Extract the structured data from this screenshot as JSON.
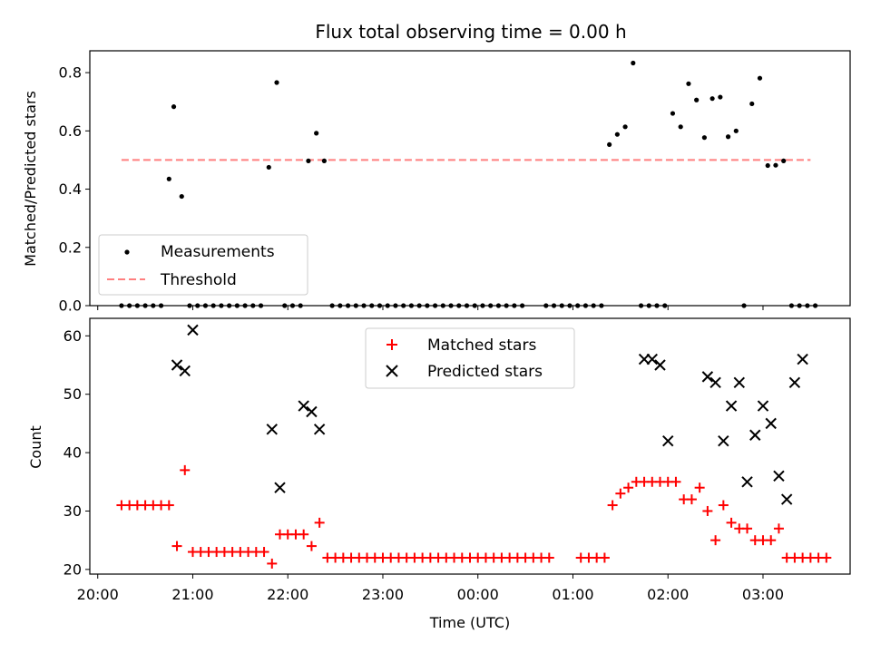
{
  "chart_data": [
    {
      "type": "scatter",
      "title": "Flux total observing time = 0.00 h",
      "xlabel": "",
      "ylabel": "Matched/Predicted stars",
      "xlim": [
        "19:55",
        "03:55"
      ],
      "ylim": [
        0,
        0.875
      ],
      "yticks": [
        "0.0",
        "0.2",
        "0.4",
        "0.6",
        "0.8"
      ],
      "ytick_values": [
        0,
        0.2,
        0.4,
        0.6,
        0.8
      ],
      "threshold": {
        "name": "Threshold",
        "value": 0.5,
        "x_range": [
          "20:15",
          "03:30"
        ],
        "color": "#ff7f7f"
      },
      "legend": {
        "placement": "lower-left",
        "entries": [
          "Measurements",
          "Threshold"
        ]
      },
      "series": [
        {
          "name": "Measurements",
          "color": "#000000",
          "x": [
            "20:15",
            "20:20",
            "20:25",
            "20:30",
            "20:35",
            "20:40",
            "20:45",
            "20:48",
            "20:53",
            "20:58",
            "21:03",
            "21:08",
            "21:13",
            "21:18",
            "21:23",
            "21:28",
            "21:33",
            "21:38",
            "21:43",
            "21:48",
            "21:53",
            "21:58",
            "22:03",
            "22:08",
            "22:13",
            "22:18",
            "22:23",
            "22:28",
            "22:33",
            "22:38",
            "22:43",
            "22:48",
            "22:53",
            "22:58",
            "23:03",
            "23:08",
            "23:13",
            "23:18",
            "23:23",
            "23:28",
            "23:33",
            "23:38",
            "23:43",
            "23:48",
            "23:53",
            "23:58",
            "00:03",
            "00:08",
            "00:13",
            "00:18",
            "00:23",
            "00:28",
            "00:43",
            "00:48",
            "00:53",
            "00:58",
            "01:03",
            "01:08",
            "01:13",
            "01:18",
            "01:23",
            "01:28",
            "01:33",
            "01:38",
            "01:43",
            "01:48",
            "01:53",
            "01:58",
            "02:03",
            "02:08",
            "02:13",
            "02:18",
            "02:23",
            "02:28",
            "02:33",
            "02:38",
            "02:43",
            "02:48",
            "02:53",
            "02:58",
            "03:03",
            "03:08",
            "03:13",
            "03:18",
            "03:23",
            "03:28",
            "03:33"
          ],
          "y": [
            0,
            0,
            0,
            0,
            0,
            0,
            0.435,
            0.683,
            0.375,
            0,
            0,
            0,
            0,
            0,
            0,
            0,
            0,
            0,
            0,
            0.475,
            0.766,
            0,
            0,
            0,
            0.497,
            0.592,
            0.497,
            0,
            0,
            0,
            0,
            0,
            0,
            0,
            0,
            0,
            0,
            0,
            0,
            0,
            0,
            0,
            0,
            0,
            0,
            0,
            0,
            0,
            0,
            0,
            0,
            0,
            0,
            0,
            0,
            0,
            0,
            0,
            0,
            0,
            0.553,
            0.588,
            0.614,
            0.833,
            0,
            0,
            0,
            0,
            0.66,
            0.614,
            0.762,
            0.706,
            0.577,
            0.711,
            0.716,
            0.58,
            0.6,
            0,
            0.693,
            0.781,
            0.481,
            0.482,
            0.497,
            0,
            0,
            0,
            0
          ]
        }
      ]
    },
    {
      "type": "scatter",
      "title": "",
      "xlabel": "Time (UTC)",
      "ylabel": "Count",
      "xlim": [
        "19:55",
        "03:55"
      ],
      "ylim": [
        19.2,
        63
      ],
      "xticks": [
        "20:00",
        "21:00",
        "22:00",
        "23:00",
        "00:00",
        "01:00",
        "02:00",
        "03:00"
      ],
      "yticks": [
        "20",
        "30",
        "40",
        "50",
        "60"
      ],
      "ytick_values": [
        20,
        30,
        40,
        50,
        60
      ],
      "legend": {
        "placement": "upper-center",
        "entries": [
          "Matched stars",
          "Predicted stars"
        ]
      },
      "series": [
        {
          "name": "Matched stars",
          "marker": "plus",
          "color": "#ff0000",
          "x": [
            "20:15",
            "20:20",
            "20:25",
            "20:30",
            "20:35",
            "20:40",
            "20:45",
            "20:50",
            "20:55",
            "21:00",
            "21:05",
            "21:10",
            "21:15",
            "21:20",
            "21:25",
            "21:30",
            "21:35",
            "21:40",
            "21:45",
            "21:50",
            "21:55",
            "22:00",
            "22:05",
            "22:10",
            "22:15",
            "22:20",
            "22:25",
            "22:30",
            "22:35",
            "22:40",
            "22:45",
            "22:50",
            "22:55",
            "23:00",
            "23:05",
            "23:10",
            "23:15",
            "23:20",
            "23:25",
            "23:30",
            "23:35",
            "23:40",
            "23:45",
            "23:50",
            "23:55",
            "00:00",
            "00:05",
            "00:10",
            "00:15",
            "00:20",
            "00:25",
            "00:30",
            "00:35",
            "00:40",
            "00:45",
            "01:05",
            "01:10",
            "01:15",
            "01:20",
            "01:25",
            "01:30",
            "01:35",
            "01:40",
            "01:45",
            "01:50",
            "01:55",
            "02:00",
            "02:05",
            "02:10",
            "02:15",
            "02:20",
            "02:25",
            "02:30",
            "02:35",
            "02:40",
            "02:45",
            "02:50",
            "02:55",
            "03:00",
            "03:05",
            "03:10",
            "03:15",
            "03:20",
            "03:25",
            "03:30",
            "03:35",
            "03:40"
          ],
          "y": [
            31,
            31,
            31,
            31,
            31,
            31,
            31,
            24,
            37,
            23,
            23,
            23,
            23,
            23,
            23,
            23,
            23,
            23,
            23,
            21,
            26,
            26,
            26,
            26,
            24,
            28,
            22,
            22,
            22,
            22,
            22,
            22,
            22,
            22,
            22,
            22,
            22,
            22,
            22,
            22,
            22,
            22,
            22,
            22,
            22,
            22,
            22,
            22,
            22,
            22,
            22,
            22,
            22,
            22,
            22,
            22,
            22,
            22,
            22,
            31,
            33,
            34,
            35,
            35,
            35,
            35,
            35,
            35,
            32,
            32,
            34,
            30,
            25,
            31,
            28,
            27,
            27,
            25,
            25,
            25,
            27,
            22,
            22,
            22,
            22,
            22,
            22
          ]
        },
        {
          "name": "Predicted stars",
          "marker": "x",
          "color": "#000000",
          "x": [
            "20:50",
            "20:55",
            "21:00",
            "21:50",
            "21:55",
            "22:10",
            "22:15",
            "22:20",
            "01:45",
            "01:50",
            "01:55",
            "02:00",
            "02:25",
            "02:30",
            "02:35",
            "02:40",
            "02:45",
            "02:50",
            "02:55",
            "03:00",
            "03:05",
            "03:10",
            "03:15",
            "03:20",
            "03:25"
          ],
          "y": [
            55,
            54,
            61,
            44,
            34,
            48,
            47,
            44,
            56,
            56,
            55,
            42,
            53,
            52,
            42,
            48,
            52,
            35,
            43,
            48,
            45,
            36,
            32,
            52,
            56
          ]
        }
      ]
    }
  ]
}
